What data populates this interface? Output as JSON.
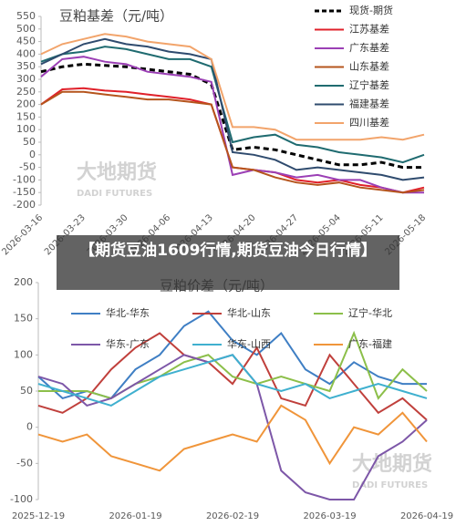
{
  "banner": "【期货豆油1609行情,期货豆油今日行情】",
  "watermark": {
    "cn": "大地期货",
    "en": "DADI FUTURES"
  },
  "chart_data": [
    {
      "type": "line",
      "title": "豆粕基差（元/吨）",
      "categories": [
        "2026-03-16",
        null,
        "2026-03-23",
        null,
        "2026-03-30",
        null,
        "2026-04-06",
        null,
        "2026-04-13",
        null,
        "2026-04-20",
        null,
        "2026-04-27",
        null,
        "2026-05-04",
        null,
        "2026-05-11",
        null,
        "2026-05-18"
      ],
      "ylim": [
        -200,
        550
      ],
      "yticks": [
        -200,
        -150,
        -100,
        -50,
        0,
        50,
        100,
        150,
        200,
        250,
        300,
        350,
        400,
        450,
        500,
        550
      ],
      "grid": false,
      "legend": "right",
      "series": [
        {
          "name": "现货-期货",
          "color": "#000000",
          "line_style": "dashed",
          "values": [
            330,
            350,
            360,
            355,
            350,
            340,
            330,
            320,
            280,
            20,
            30,
            20,
            0,
            -20,
            -40,
            -40,
            -30,
            -50,
            -50
          ]
        },
        {
          "name": "江苏基差",
          "color": "#e0202a",
          "values": [
            200,
            260,
            265,
            255,
            250,
            240,
            230,
            220,
            200,
            -50,
            -60,
            -70,
            -100,
            -110,
            -100,
            -120,
            -130,
            -150,
            -130
          ]
        },
        {
          "name": "广东基差",
          "color": "#9b3fb5",
          "values": [
            310,
            380,
            390,
            370,
            360,
            330,
            320,
            310,
            290,
            -80,
            -60,
            -70,
            -90,
            -80,
            -100,
            -100,
            -130,
            -150,
            -150
          ]
        },
        {
          "name": "山东基差",
          "color": "#b5541c",
          "values": [
            200,
            250,
            250,
            240,
            230,
            220,
            220,
            210,
            200,
            -50,
            -60,
            -90,
            -110,
            -120,
            -110,
            -130,
            -140,
            -150,
            -140
          ]
        },
        {
          "name": "辽宁基差",
          "color": "#1f6b70",
          "values": [
            370,
            400,
            410,
            430,
            420,
            400,
            380,
            380,
            350,
            50,
            70,
            80,
            40,
            30,
            10,
            0,
            -10,
            -30,
            0
          ]
        },
        {
          "name": "福建基差",
          "color": "#2f4b6e",
          "values": [
            360,
            400,
            440,
            460,
            440,
            430,
            410,
            400,
            380,
            10,
            0,
            -20,
            -60,
            -50,
            -60,
            -70,
            -80,
            -100,
            -90
          ]
        },
        {
          "name": "四川基差",
          "color": "#f2a46b",
          "values": [
            400,
            440,
            460,
            480,
            470,
            450,
            440,
            430,
            380,
            110,
            110,
            100,
            60,
            60,
            60,
            60,
            70,
            60,
            80
          ]
        }
      ]
    },
    {
      "type": "line",
      "title": "豆粕价差（元/吨）",
      "categories": [
        "2025-12-19",
        null,
        null,
        null,
        "2026-01-19",
        null,
        null,
        null,
        "2026-02-19",
        null,
        null,
        null,
        "2026-03-19",
        null,
        null,
        null,
        "2026-04-19"
      ],
      "ylim": [
        -100,
        200
      ],
      "yticks": [
        -100,
        -50,
        0,
        50,
        100,
        150,
        200
      ],
      "grid": false,
      "legend": "top",
      "series": [
        {
          "name": "华北-华东",
          "color": "#3f7fc4",
          "values": [
            70,
            40,
            50,
            40,
            80,
            100,
            140,
            160,
            120,
            100,
            130,
            80,
            60,
            90,
            70,
            60,
            60
          ]
        },
        {
          "name": "华北-山东",
          "color": "#c0403c",
          "values": [
            30,
            20,
            40,
            80,
            110,
            130,
            100,
            90,
            60,
            110,
            40,
            30,
            100,
            60,
            20,
            40,
            10
          ]
        },
        {
          "name": "辽宁-华北",
          "color": "#8cbf4a",
          "values": [
            50,
            50,
            50,
            40,
            60,
            70,
            90,
            100,
            70,
            60,
            70,
            60,
            50,
            130,
            40,
            80,
            50
          ]
        },
        {
          "name": "华东-广东",
          "color": "#7d57a8",
          "values": [
            70,
            60,
            30,
            40,
            60,
            80,
            100,
            90,
            100,
            60,
            -60,
            -90,
            -100,
            -100,
            -40,
            -20,
            10
          ]
        },
        {
          "name": "华东-山西",
          "color": "#3fb0cf",
          "values": [
            60,
            50,
            40,
            30,
            50,
            70,
            80,
            90,
            100,
            60,
            50,
            60,
            40,
            50,
            60,
            50,
            40
          ]
        },
        {
          "name": "广东-福建",
          "color": "#f0953a",
          "values": [
            -10,
            -20,
            -10,
            -40,
            -50,
            -60,
            -30,
            -20,
            -10,
            -20,
            30,
            10,
            -50,
            0,
            -10,
            20,
            -20
          ]
        }
      ]
    }
  ]
}
